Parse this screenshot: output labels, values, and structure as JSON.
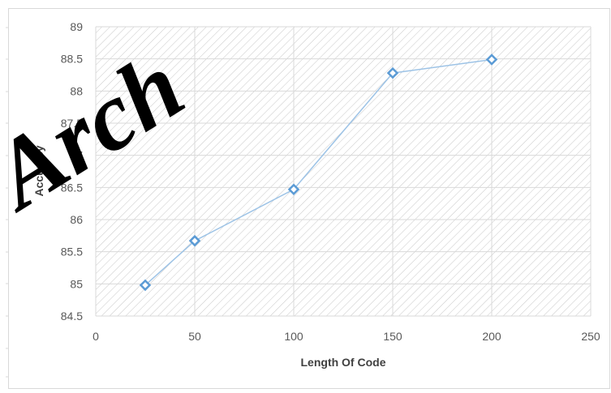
{
  "chart_data": {
    "type": "scatter",
    "title": "",
    "xlabel": "Length Of Code",
    "ylabel": "Accuracy",
    "xlim": [
      0,
      250
    ],
    "ylim": [
      84.5,
      89
    ],
    "x_ticks": [
      "0",
      "50",
      "100",
      "150",
      "200",
      "250"
    ],
    "y_ticks": [
      "84.5",
      "85",
      "85.5",
      "86",
      "86.5",
      "87",
      "87.5",
      "88",
      "88.5",
      "89"
    ],
    "grid": true,
    "marker": "diamond",
    "series": [
      {
        "x": [
          25,
          50,
          100,
          150,
          200
        ],
        "y": [
          84.98,
          85.67,
          86.47,
          88.28,
          88.49
        ],
        "color": "#5b9bd5",
        "line_color": "#9dc3e6"
      }
    ]
  },
  "watermark": {
    "text": "Arch"
  },
  "colors": {
    "gridline": "#d9d9d9",
    "hatch": "#c8c8c8",
    "frame": "#d9d9d9"
  }
}
